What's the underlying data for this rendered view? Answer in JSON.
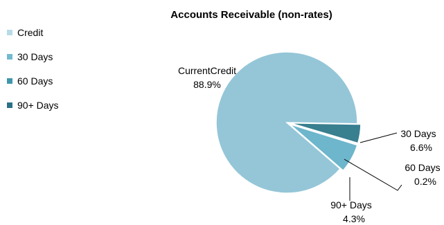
{
  "chart_data": {
    "type": "pie",
    "title": "Accounts Receivable (non-rates)",
    "legend": {
      "placement": "top-left",
      "items": [
        {
          "label": "Credit",
          "color": "#b7dce6"
        },
        {
          "label": "30 Days",
          "color": "#72b9cf"
        },
        {
          "label": "60 Days",
          "color": "#3f97ab"
        },
        {
          "label": "90+ Days",
          "color": "#2c7085"
        }
      ]
    },
    "slices": [
      {
        "name": "CurrentCredit",
        "value": 88.9,
        "label": "88.9%",
        "color": "#94c6d7"
      },
      {
        "name": "30 Days",
        "value": 6.6,
        "label": "6.6%",
        "color": "#6db6cc"
      },
      {
        "name": "60 Days",
        "value": 0.2,
        "label": "0.2%",
        "color": "#4c9eb1"
      },
      {
        "name": "90+ Days",
        "value": 4.3,
        "label": "4.3%",
        "color": "#387f8f"
      }
    ]
  }
}
